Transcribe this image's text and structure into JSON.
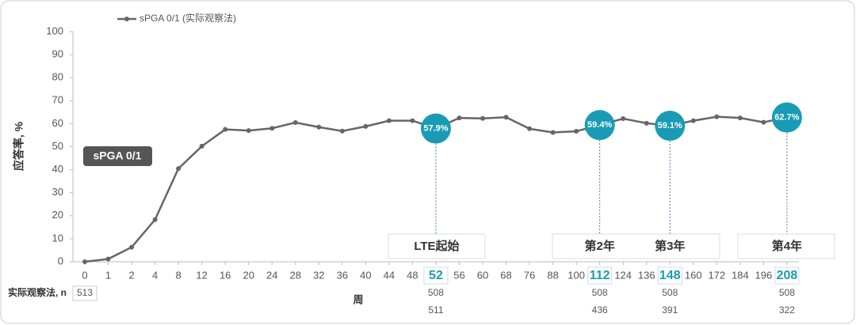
{
  "chart_data": {
    "type": "line",
    "legend": "sPGA 0/1 (实际观察法)",
    "annotation": "sPGA 0/1",
    "x_label": "周",
    "y_label": "应答率, %",
    "categories": [
      "0",
      "1",
      "2",
      "4",
      "8",
      "12",
      "16",
      "20",
      "24",
      "28",
      "32",
      "36",
      "40",
      "44",
      "48",
      "52",
      "56",
      "60",
      "68",
      "76",
      "88",
      "100",
      "112",
      "124",
      "136",
      "148",
      "160",
      "172",
      "184",
      "196",
      "208"
    ],
    "series": [
      {
        "name": "sPGA 0/1 (实际观察法)",
        "color": "#666666",
        "values": [
          0,
          1.2,
          6.3,
          18.3,
          40.5,
          50.2,
          57.5,
          57,
          58,
          60.5,
          58.5,
          56.8,
          58.8,
          61.3,
          61.3,
          57.9,
          62.5,
          62.3,
          62.8,
          57.8,
          56.2,
          56.7,
          59.4,
          62.2,
          60.2,
          59.1,
          61.3,
          63,
          62.5,
          60.6,
          62.7
        ],
        "value_labels": [
          null,
          null,
          null,
          null,
          null,
          null,
          null,
          null,
          null,
          null,
          null,
          null,
          null,
          null,
          null,
          "57.9%",
          null,
          null,
          null,
          null,
          null,
          null,
          "59.4%",
          null,
          null,
          "59.1%",
          null,
          null,
          null,
          null,
          "62.7%"
        ]
      }
    ],
    "highlight_color": "#1a9bb5",
    "phases": [
      "LTE起始",
      "第2年",
      "第3年",
      "第4年"
    ],
    "n_label": "实际观察法, n",
    "n_rows": [
      [
        513,
        null,
        null,
        null,
        null,
        null,
        null,
        null,
        null,
        null,
        null,
        null,
        null,
        null,
        null,
        508,
        null,
        null,
        null,
        null,
        null,
        null,
        508,
        null,
        null,
        508,
        null,
        null,
        null,
        null,
        508
      ],
      [
        null,
        null,
        null,
        null,
        null,
        null,
        null,
        null,
        null,
        null,
        null,
        null,
        null,
        null,
        null,
        511,
        null,
        null,
        null,
        null,
        null,
        null,
        436,
        null,
        null,
        391,
        null,
        null,
        null,
        null,
        322
      ]
    ],
    "ylim": [
      0,
      100
    ],
    "yticks": [
      0,
      10,
      20,
      30,
      40,
      50,
      60,
      70,
      80,
      90,
      100
    ]
  }
}
